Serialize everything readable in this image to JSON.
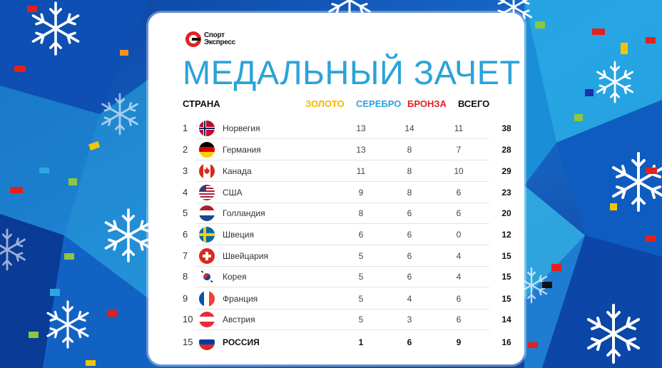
{
  "logo": {
    "line1": "Спорт",
    "line2": "Экспресс"
  },
  "title": "МЕДАЛЬНЫЙ ЗАЧЕТ",
  "headers": {
    "country": "СТРАНА",
    "gold": "ЗОЛОТО",
    "silver": "СЕРЕБРО",
    "bronze": "БРОНЗА",
    "total": "ВСЕГО"
  },
  "colors": {
    "gold": "#f2b600",
    "silver": "#2ba3d9",
    "bronze": "#e2211c",
    "total": "#111111",
    "title": "#2ba3d9"
  },
  "rows": [
    {
      "rank": "1",
      "country": "Норвегия",
      "flag": "norway-flag",
      "gold": "13",
      "silver": "14",
      "bronze": "11",
      "total": "38"
    },
    {
      "rank": "2",
      "country": "Германия",
      "flag": "germany-flag",
      "gold": "13",
      "silver": "8",
      "bronze": "7",
      "total": "28"
    },
    {
      "rank": "3",
      "country": "Канада",
      "flag": "canada-flag",
      "gold": "11",
      "silver": "8",
      "bronze": "10",
      "total": "29"
    },
    {
      "rank": "4",
      "country": "США",
      "flag": "usa-flag",
      "gold": "9",
      "silver": "8",
      "bronze": "6",
      "total": "23"
    },
    {
      "rank": "5",
      "country": "Голландия",
      "flag": "netherlands-flag",
      "gold": "8",
      "silver": "6",
      "bronze": "6",
      "total": "20"
    },
    {
      "rank": "6",
      "country": "Швеция",
      "flag": "sweden-flag",
      "gold": "6",
      "silver": "6",
      "bronze": "0",
      "total": "12"
    },
    {
      "rank": "7",
      "country": "Швейцария",
      "flag": "switzerland-flag",
      "gold": "5",
      "silver": "6",
      "bronze": "4",
      "total": "15"
    },
    {
      "rank": "8",
      "country": "Корея",
      "flag": "korea-flag",
      "gold": "5",
      "silver": "6",
      "bronze": "4",
      "total": "15"
    },
    {
      "rank": "9",
      "country": "Франция",
      "flag": "france-flag",
      "gold": "5",
      "silver": "4",
      "bronze": "6",
      "total": "15"
    },
    {
      "rank": "10",
      "country": "Австрия",
      "flag": "austria-flag",
      "gold": "5",
      "silver": "3",
      "bronze": "6",
      "total": "14"
    },
    {
      "rank": "15",
      "country": "РОССИЯ",
      "flag": "russia-flag",
      "gold": "1",
      "silver": "6",
      "bronze": "9",
      "total": "16"
    }
  ]
}
